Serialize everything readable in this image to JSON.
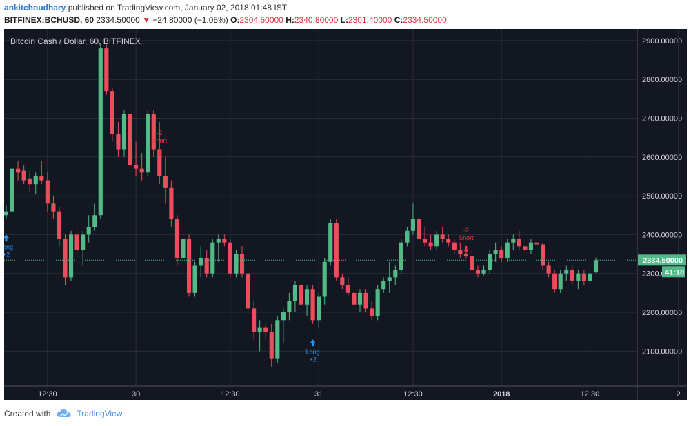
{
  "header": {
    "author": "ankitchoudhary",
    "published_text": "published on TradingView.com, January 02, 2018 01:48 IST",
    "symbol_line": "BITFINEX:BCHUSD, 60",
    "last": "2334.50000",
    "change": "−24.80000 (−1.05%)",
    "o_label": "O:",
    "o_value": "2304.50000",
    "h_label": "H:",
    "h_value": "2340.80000",
    "l_label": "L:",
    "l_value": "2301.40000",
    "c_label": "C:",
    "c_value": "2334.50000"
  },
  "footer": {
    "created_with": "Created with",
    "brand": "TradingView"
  },
  "colors": {
    "background": "#131722",
    "up": "#53b987",
    "down": "#eb4d5c",
    "grid": "#2a2e39",
    "axis_text": "#d1d4dc",
    "signal_long": "#2196f3",
    "signal_short": "#f23645",
    "price_line": "#53b987"
  },
  "chart_data": {
    "type": "candlestick",
    "title": "Bitcoin Cash / Dollar, 60, BITFINEX",
    "ylim": [
      2010,
      2930
    ],
    "y_ticks": [
      2100,
      2200,
      2300,
      2400,
      2500,
      2600,
      2700,
      2800,
      2900
    ],
    "y_tick_labels": [
      "2100.00000",
      "2200.00000",
      "2300.00000",
      "2400.00000",
      "2500.00000",
      "2600.00000",
      "2700.00000",
      "2800.00000",
      "2900.00000"
    ],
    "x_ticks": [
      {
        "label": "12:30",
        "index": 7
      },
      {
        "label": "30",
        "index": 22
      },
      {
        "label": "12:30",
        "index": 38
      },
      {
        "label": "31",
        "index": 53
      },
      {
        "label": "12:30",
        "index": 69
      },
      {
        "label": "2018",
        "index": 84
      },
      {
        "label": "12:30",
        "index": 99
      },
      {
        "label": "2",
        "index": 114
      }
    ],
    "candles": [
      [
        2450,
        2475,
        2440,
        2460
      ],
      [
        2460,
        2580,
        2455,
        2570
      ],
      [
        2570,
        2590,
        2540,
        2560
      ],
      [
        2565,
        2580,
        2530,
        2540
      ],
      [
        2545,
        2565,
        2510,
        2530
      ],
      [
        2530,
        2560,
        2505,
        2550
      ],
      [
        2550,
        2590,
        2530,
        2540
      ],
      [
        2540,
        2560,
        2460,
        2480
      ],
      [
        2480,
        2500,
        2440,
        2460
      ],
      [
        2460,
        2470,
        2370,
        2390
      ],
      [
        2390,
        2400,
        2270,
        2290
      ],
      [
        2290,
        2410,
        2280,
        2400
      ],
      [
        2400,
        2420,
        2340,
        2360
      ],
      [
        2360,
        2410,
        2320,
        2400
      ],
      [
        2400,
        2450,
        2380,
        2420
      ],
      [
        2420,
        2480,
        2410,
        2450
      ],
      [
        2450,
        2890,
        2440,
        2880
      ],
      [
        2880,
        2890,
        2760,
        2770
      ],
      [
        2770,
        2780,
        2640,
        2660
      ],
      [
        2660,
        2690,
        2600,
        2620
      ],
      [
        2620,
        2720,
        2600,
        2710
      ],
      [
        2710,
        2720,
        2570,
        2580
      ],
      [
        2580,
        2640,
        2550,
        2570
      ],
      [
        2570,
        2610,
        2540,
        2560
      ],
      [
        2560,
        2720,
        2550,
        2710
      ],
      [
        2710,
        2720,
        2600,
        2620
      ],
      [
        2620,
        2690,
        2530,
        2550
      ],
      [
        2550,
        2600,
        2480,
        2520
      ],
      [
        2520,
        2540,
        2420,
        2440
      ],
      [
        2440,
        2450,
        2320,
        2340
      ],
      [
        2340,
        2400,
        2290,
        2390
      ],
      [
        2390,
        2400,
        2240,
        2250
      ],
      [
        2250,
        2330,
        2240,
        2320
      ],
      [
        2320,
        2370,
        2290,
        2340
      ],
      [
        2340,
        2360,
        2290,
        2300
      ],
      [
        2300,
        2390,
        2290,
        2380
      ],
      [
        2380,
        2400,
        2330,
        2390
      ],
      [
        2390,
        2400,
        2370,
        2380
      ],
      [
        2380,
        2390,
        2290,
        2300
      ],
      [
        2300,
        2360,
        2290,
        2350
      ],
      [
        2350,
        2370,
        2290,
        2300
      ],
      [
        2300,
        2310,
        2200,
        2210
      ],
      [
        2210,
        2230,
        2130,
        2150
      ],
      [
        2150,
        2180,
        2100,
        2160
      ],
      [
        2160,
        2170,
        2130,
        2150
      ],
      [
        2150,
        2170,
        2060,
        2080
      ],
      [
        2080,
        2190,
        2070,
        2180
      ],
      [
        2180,
        2210,
        2120,
        2200
      ],
      [
        2200,
        2250,
        2180,
        2230
      ],
      [
        2230,
        2280,
        2200,
        2270
      ],
      [
        2270,
        2280,
        2210,
        2220
      ],
      [
        2220,
        2270,
        2190,
        2260
      ],
      [
        2260,
        2270,
        2170,
        2180
      ],
      [
        2180,
        2250,
        2160,
        2240
      ],
      [
        2240,
        2340,
        2220,
        2330
      ],
      [
        2330,
        2440,
        2320,
        2430
      ],
      [
        2430,
        2440,
        2280,
        2290
      ],
      [
        2290,
        2300,
        2260,
        2270
      ],
      [
        2270,
        2290,
        2240,
        2250
      ],
      [
        2250,
        2260,
        2210,
        2220
      ],
      [
        2220,
        2260,
        2200,
        2250
      ],
      [
        2250,
        2260,
        2200,
        2210
      ],
      [
        2210,
        2230,
        2180,
        2190
      ],
      [
        2190,
        2270,
        2180,
        2260
      ],
      [
        2260,
        2290,
        2250,
        2280
      ],
      [
        2280,
        2330,
        2250,
        2290
      ],
      [
        2290,
        2320,
        2270,
        2310
      ],
      [
        2310,
        2390,
        2300,
        2380
      ],
      [
        2380,
        2420,
        2370,
        2410
      ],
      [
        2410,
        2480,
        2400,
        2440
      ],
      [
        2440,
        2450,
        2380,
        2390
      ],
      [
        2390,
        2420,
        2370,
        2380
      ],
      [
        2380,
        2400,
        2360,
        2370
      ],
      [
        2370,
        2410,
        2360,
        2400
      ],
      [
        2400,
        2420,
        2380,
        2390
      ],
      [
        2390,
        2400,
        2370,
        2380
      ],
      [
        2380,
        2390,
        2350,
        2360
      ],
      [
        2360,
        2380,
        2340,
        2350
      ],
      [
        2350,
        2360,
        2340,
        2345
      ],
      [
        2345,
        2360,
        2300,
        2310
      ],
      [
        2310,
        2320,
        2290,
        2300
      ],
      [
        2300,
        2320,
        2295,
        2310
      ],
      [
        2310,
        2360,
        2300,
        2350
      ],
      [
        2350,
        2380,
        2330,
        2360
      ],
      [
        2360,
        2370,
        2330,
        2340
      ],
      [
        2340,
        2390,
        2330,
        2380
      ],
      [
        2380,
        2400,
        2360,
        2390
      ],
      [
        2390,
        2410,
        2360,
        2370
      ],
      [
        2370,
        2390,
        2350,
        2360
      ],
      [
        2360,
        2390,
        2350,
        2380
      ],
      [
        2380,
        2390,
        2370,
        2375
      ],
      [
        2375,
        2380,
        2310,
        2320
      ],
      [
        2320,
        2330,
        2290,
        2300
      ],
      [
        2300,
        2310,
        2250,
        2260
      ],
      [
        2260,
        2310,
        2250,
        2300
      ],
      [
        2300,
        2320,
        2280,
        2310
      ],
      [
        2310,
        2320,
        2270,
        2280
      ],
      [
        2280,
        2310,
        2260,
        2300
      ],
      [
        2300,
        2310,
        2270,
        2280
      ],
      [
        2280,
        2320,
        2270,
        2300
      ],
      [
        2304.5,
        2340.8,
        2301.4,
        2334.5
      ]
    ],
    "last_price": 2334.5,
    "last_price_label": "2334.50000",
    "countdown_label": "41:18",
    "signals": [
      {
        "type": "long",
        "index": 0,
        "price": 2450,
        "label": "Long",
        "qty": "+2"
      },
      {
        "type": "short",
        "index": 26,
        "price": 2610,
        "label": "Short",
        "qty": "-2"
      },
      {
        "type": "long",
        "index": 52,
        "price": 2180,
        "label": "Long",
        "qty": "+2"
      },
      {
        "type": "short",
        "index": 78,
        "price": 2360,
        "label": "Short",
        "qty": "-2"
      }
    ]
  }
}
